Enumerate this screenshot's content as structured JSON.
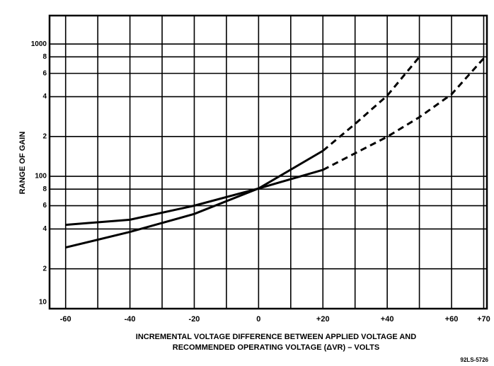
{
  "chart_data": {
    "type": "line",
    "ylabel": "RANGE OF GAIN",
    "xlabel": [
      "INCREMENTAL VOLTAGE DIFFERENCE BETWEEN APPLIED VOLTAGE AND",
      "RECOMMENDED OPERATING VOLTAGE (ΔVR) – VOLTS"
    ],
    "annotation": "92LS-5726",
    "log_y": true,
    "grid": true,
    "color": "#000000",
    "xlim": [
      -65,
      71
    ],
    "ylim": [
      10,
      1640
    ],
    "xticks": [
      -60,
      -40,
      -20,
      0,
      {
        "value": 20,
        "label": "+20"
      },
      {
        "value": 40,
        "label": "+40"
      },
      {
        "value": 60,
        "label": "+60"
      },
      {
        "value": 70,
        "label": "+70"
      }
    ],
    "xgrid": [
      -60,
      -50,
      -40,
      -30,
      -20,
      -10,
      0,
      10,
      20,
      30,
      40,
      50,
      60,
      70
    ],
    "yticks": [
      {
        "value": 1000,
        "label": "1000"
      },
      {
        "value": 800,
        "label": "8"
      },
      {
        "value": 600,
        "label": "6"
      },
      {
        "value": 400,
        "label": "4"
      },
      {
        "value": 200,
        "label": "2"
      },
      100,
      {
        "value": 80,
        "label": "8"
      },
      {
        "value": 60,
        "label": "6"
      },
      {
        "value": 40,
        "label": "4"
      },
      {
        "value": 20,
        "label": "2"
      },
      10
    ],
    "series": [
      {
        "style": "solid",
        "x": [
          -60,
          -40,
          -20,
          0,
          20
        ],
        "values": [
          29,
          38,
          52,
          81,
          156
        ]
      },
      {
        "style": "solid",
        "x": [
          -60,
          -40,
          -20,
          0,
          20
        ],
        "values": [
          43,
          47,
          60,
          81,
          112
        ]
      },
      {
        "style": "dashed",
        "x": [
          20,
          30,
          40,
          50
        ],
        "values": [
          156,
          249,
          407,
          800
        ]
      },
      {
        "style": "dashed",
        "x": [
          20,
          40,
          50,
          60,
          70
        ],
        "values": [
          112,
          199,
          280,
          417,
          780
        ]
      }
    ]
  }
}
